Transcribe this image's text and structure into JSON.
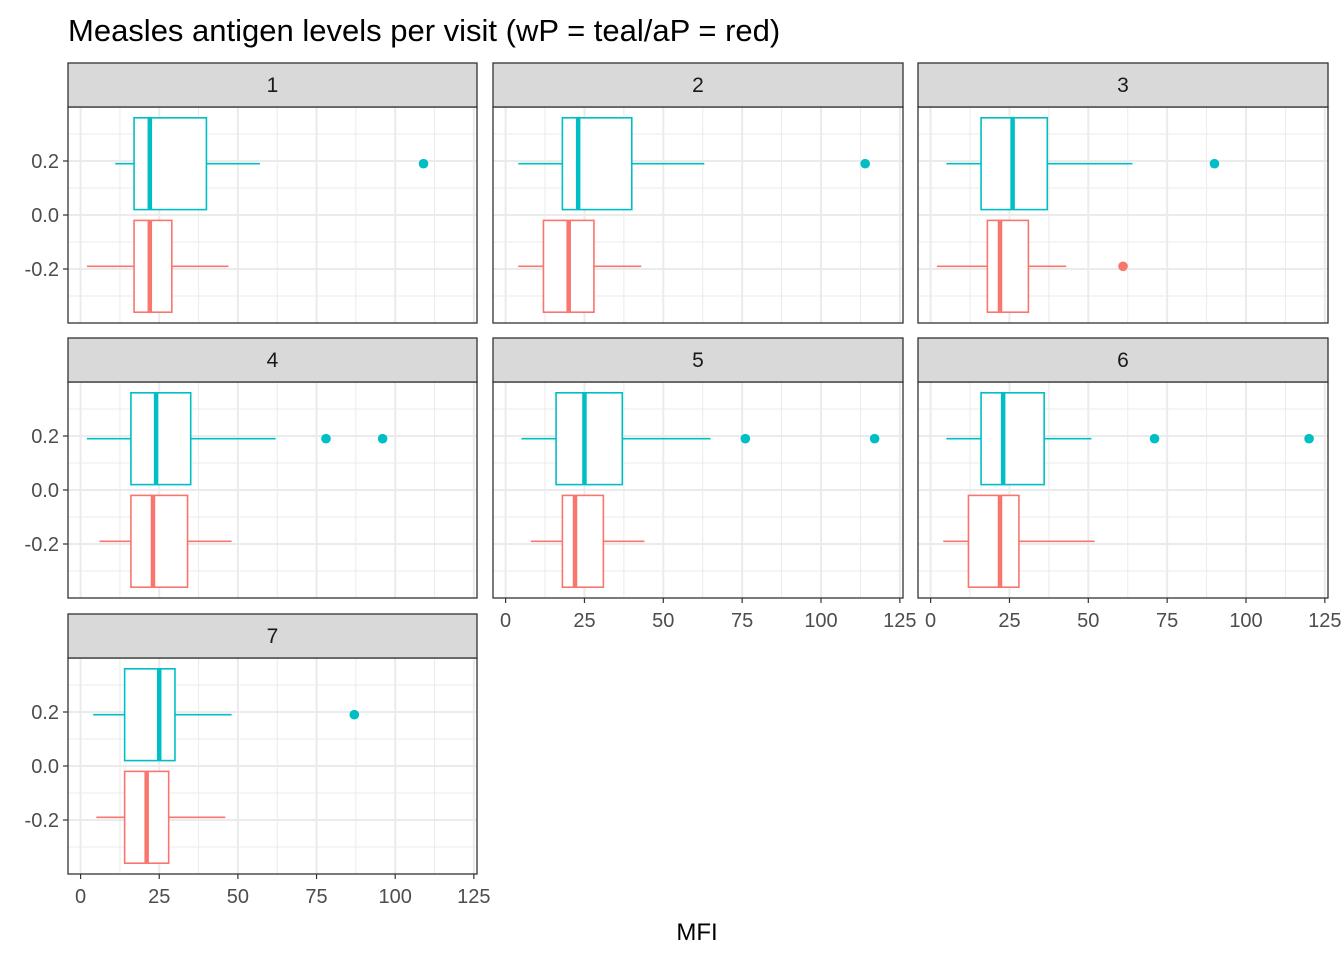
{
  "chart_data": {
    "type": "boxplot",
    "title": "Measles antigen levels per visit (wP = teal/aP = red)",
    "xlabel": "MFI",
    "ylabel": "",
    "facet_by": "visit",
    "xlim": [
      -4,
      126
    ],
    "ylim": [
      -0.4,
      0.4
    ],
    "x_ticks": [
      0,
      25,
      50,
      75,
      100,
      125
    ],
    "y_ticks": [
      0.2,
      0.0,
      -0.2
    ],
    "y_tick_labels": [
      "0.2",
      "0.0",
      "-0.2"
    ],
    "grid": true,
    "legend": "none",
    "colors": {
      "wP": "#00BFC4",
      "aP": "#F8766D"
    },
    "panels": [
      {
        "label": "1",
        "boxes": [
          {
            "group": "wP",
            "y": 0.19,
            "whisker_low": 11,
            "q1": 17,
            "median": 22,
            "q3": 40,
            "whisker_high": 57,
            "outliers": [
              109
            ]
          },
          {
            "group": "aP",
            "y": -0.19,
            "whisker_low": 2,
            "q1": 17,
            "median": 22,
            "q3": 29,
            "whisker_high": 47,
            "outliers": []
          }
        ]
      },
      {
        "label": "2",
        "boxes": [
          {
            "group": "wP",
            "y": 0.19,
            "whisker_low": 4,
            "q1": 18,
            "median": 23,
            "q3": 40,
            "whisker_high": 63,
            "outliers": [
              114
            ]
          },
          {
            "group": "aP",
            "y": -0.19,
            "whisker_low": 4,
            "q1": 12,
            "median": 20,
            "q3": 28,
            "whisker_high": 43,
            "outliers": []
          }
        ]
      },
      {
        "label": "3",
        "boxes": [
          {
            "group": "wP",
            "y": 0.19,
            "whisker_low": 5,
            "q1": 16,
            "median": 26,
            "q3": 37,
            "whisker_high": 64,
            "outliers": [
              90
            ]
          },
          {
            "group": "aP",
            "y": -0.19,
            "whisker_low": 2,
            "q1": 18,
            "median": 22,
            "q3": 31,
            "whisker_high": 43,
            "outliers": [
              61
            ]
          }
        ]
      },
      {
        "label": "4",
        "boxes": [
          {
            "group": "wP",
            "y": 0.19,
            "whisker_low": 2,
            "q1": 16,
            "median": 24,
            "q3": 35,
            "whisker_high": 62,
            "outliers": [
              78,
              96
            ]
          },
          {
            "group": "aP",
            "y": -0.19,
            "whisker_low": 6,
            "q1": 16,
            "median": 23,
            "q3": 34,
            "whisker_high": 48,
            "outliers": []
          }
        ]
      },
      {
        "label": "5",
        "boxes": [
          {
            "group": "wP",
            "y": 0.19,
            "whisker_low": 5,
            "q1": 16,
            "median": 25,
            "q3": 37,
            "whisker_high": 65,
            "outliers": [
              76,
              117
            ]
          },
          {
            "group": "aP",
            "y": -0.19,
            "whisker_low": 8,
            "q1": 18,
            "median": 22,
            "q3": 31,
            "whisker_high": 44,
            "outliers": []
          }
        ]
      },
      {
        "label": "6",
        "boxes": [
          {
            "group": "wP",
            "y": 0.19,
            "whisker_low": 5,
            "q1": 16,
            "median": 23,
            "q3": 36,
            "whisker_high": 51,
            "outliers": [
              71,
              120
            ]
          },
          {
            "group": "aP",
            "y": -0.19,
            "whisker_low": 4,
            "q1": 12,
            "median": 22,
            "q3": 28,
            "whisker_high": 52,
            "outliers": []
          }
        ]
      },
      {
        "label": "7",
        "boxes": [
          {
            "group": "wP",
            "y": 0.19,
            "whisker_low": 4,
            "q1": 14,
            "median": 25,
            "q3": 30,
            "whisker_high": 48,
            "outliers": [
              87
            ]
          },
          {
            "group": "aP",
            "y": -0.19,
            "whisker_low": 5,
            "q1": 14,
            "median": 21,
            "q3": 28,
            "whisker_high": 46,
            "outliers": []
          }
        ]
      }
    ]
  }
}
